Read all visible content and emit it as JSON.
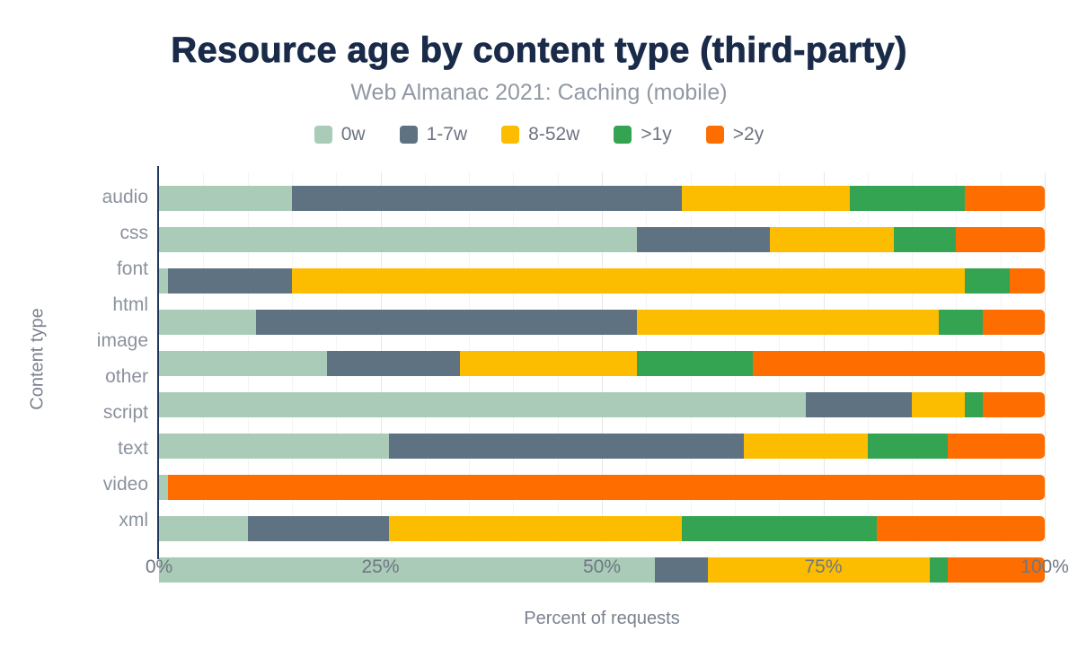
{
  "chart_data": {
    "type": "bar",
    "orientation": "horizontal-stacked",
    "title": "Resource age by content type (third-party)",
    "subtitle": "Web Almanac 2021: Caching (mobile)",
    "xlabel": "Percent of requests",
    "ylabel": "Content type",
    "xlim": [
      0,
      100
    ],
    "x_ticks": [
      "0%",
      "25%",
      "50%",
      "75%",
      "100%"
    ],
    "grid": "vertical, minor every 5%, major every 25%",
    "legend_position": "top",
    "categories": [
      "audio",
      "css",
      "font",
      "html",
      "image",
      "other",
      "script",
      "text",
      "video",
      "xml"
    ],
    "series": [
      {
        "name": "0w",
        "color": "#a9cbb7",
        "values": [
          15,
          54,
          1,
          11,
          19,
          73,
          26,
          1,
          10,
          56
        ]
      },
      {
        "name": "1-7w",
        "color": "#5f7282",
        "values": [
          44,
          15,
          14,
          43,
          15,
          12,
          40,
          0,
          16,
          6
        ]
      },
      {
        "name": "8-52w",
        "color": "#fcbd00",
        "values": [
          19,
          14,
          76,
          34,
          20,
          6,
          14,
          0,
          33,
          25
        ]
      },
      {
        "name": ">1y",
        "color": "#34a352",
        "values": [
          13,
          7,
          5,
          5,
          13,
          2,
          9,
          0,
          22,
          2
        ]
      },
      {
        "name": ">2y",
        "color": "#fe6d00",
        "values": [
          9,
          10,
          4,
          7,
          33,
          7,
          11,
          99,
          19,
          11
        ]
      }
    ],
    "colors": {
      "title": "#1a2b49",
      "subtitle": "#9199a5",
      "axis_line": "#22385a",
      "axis_text": "#6f7783",
      "background": "#ffffff"
    }
  }
}
